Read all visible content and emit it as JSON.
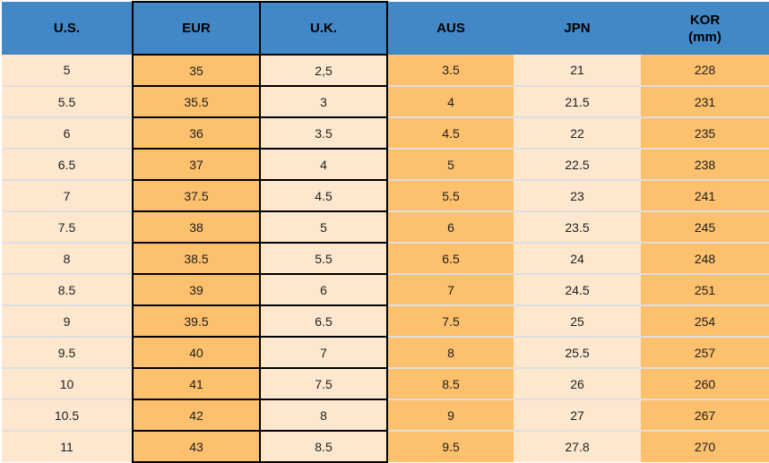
{
  "colors": {
    "header_bg": "#4287C6",
    "header_text": "#000000",
    "orange": "#FDC06C",
    "cream": "#FDE8CF",
    "separator": "#DEDEDE",
    "border": "#000000",
    "cell_text": "#1F1F1F"
  },
  "chart_data": {
    "type": "table",
    "columns": [
      {
        "key": "us",
        "label": "U.S."
      },
      {
        "key": "eur",
        "label": "EUR"
      },
      {
        "key": "uk",
        "label": "U.K."
      },
      {
        "key": "aus",
        "label": "AUS"
      },
      {
        "key": "jpn",
        "label": "JPN"
      },
      {
        "key": "kor",
        "label": "KOR",
        "sublabel": "(mm)"
      }
    ],
    "rows": [
      [
        "5",
        "35",
        "2,5",
        "3.5",
        "21",
        "228"
      ],
      [
        "5.5",
        "35.5",
        "3",
        "4",
        "21.5",
        "231"
      ],
      [
        "6",
        "36",
        "3.5",
        "4.5",
        "22",
        "235"
      ],
      [
        "6.5",
        "37",
        "4",
        "5",
        "22.5",
        "238"
      ],
      [
        "7",
        "37.5",
        "4.5",
        "5.5",
        "23",
        "241"
      ],
      [
        "7.5",
        "38",
        "5",
        "6",
        "23.5",
        "245"
      ],
      [
        "8",
        "38.5",
        "5.5",
        "6.5",
        "24",
        "248"
      ],
      [
        "8.5",
        "39",
        "6",
        "7",
        "24.5",
        "251"
      ],
      [
        "9",
        "39.5",
        "6.5",
        "7.5",
        "25",
        "254"
      ],
      [
        "9.5",
        "40",
        "7",
        "8",
        "25.5",
        "257"
      ],
      [
        "10",
        "41",
        "7.5",
        "8.5",
        "26",
        "260"
      ],
      [
        "10.5",
        "42",
        "8",
        "9",
        "27",
        "267"
      ],
      [
        "11",
        "43",
        "8.5",
        "9.5",
        "27.8",
        "270"
      ]
    ]
  }
}
